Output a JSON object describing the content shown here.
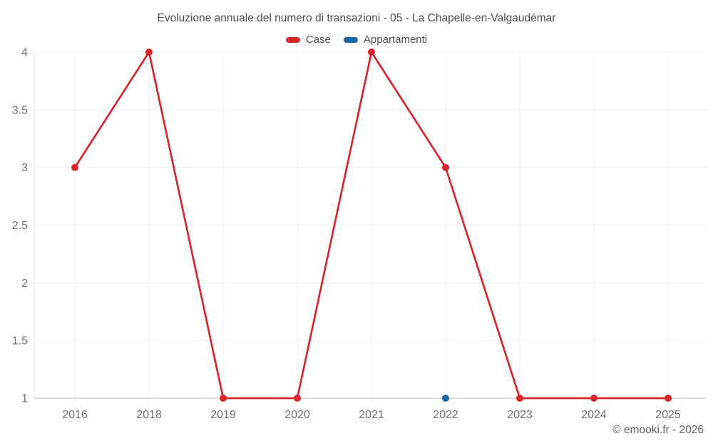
{
  "title": "Evoluzione annuale del numero di transazioni - 05 - La Chapelle-en-Valgaudémar",
  "copyright": "© emooki.fr - 2026",
  "legend": [
    {
      "label": "Case",
      "color": "#d9252b"
    },
    {
      "label": "Appartamenti",
      "color": "#1769a6"
    }
  ],
  "colors": {
    "case_red": "#d9252b",
    "appartamenti_blue": "#1769a6",
    "gridline": "#ececec",
    "axis_line": "#b8b8b8",
    "left_axis_line": "#e3e3e3"
  },
  "chart_data": {
    "type": "line",
    "title": "Evoluzione annuale del numero di transazioni - 05 - La Chapelle-en-Valgaudémar",
    "categories": [
      "2016",
      "2018",
      "2019",
      "2020",
      "2021",
      "2022",
      "2023",
      "2024",
      "2025"
    ],
    "series": [
      {
        "name": "Case",
        "color": "#d9252b",
        "values": [
          3,
          4,
          1,
          1,
          4,
          3,
          1,
          1,
          1
        ]
      },
      {
        "name": "Appartamenti",
        "color": "#1769a6",
        "values": [
          null,
          null,
          null,
          null,
          null,
          1,
          null,
          null,
          null
        ]
      }
    ],
    "xlabel": "",
    "ylabel": "",
    "ylim": [
      1,
      4
    ],
    "yticks": [
      1,
      1.5,
      2,
      2.5,
      3,
      3.5,
      4
    ],
    "grid": true,
    "legend_position": "top"
  }
}
